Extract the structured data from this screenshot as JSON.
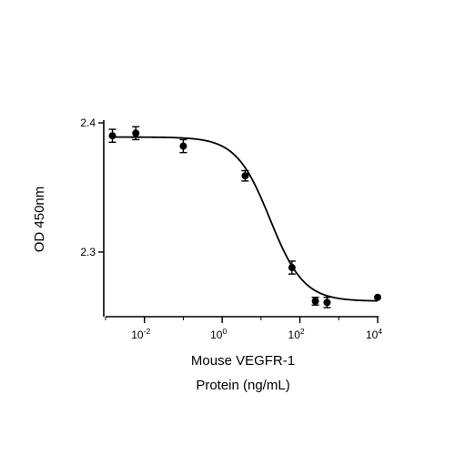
{
  "chart_data": {
    "type": "scatter",
    "xlabel": "Mouse VEGFR-1",
    "xlabel_line2": "Protein (ng/mL)",
    "ylabel": "OD 450nm",
    "xscale": "log",
    "xlim": [
      0.001,
      10000
    ],
    "ylim": [
      2.25,
      2.4
    ],
    "x_ticks": [
      {
        "value": 0.01,
        "base": "10",
        "exp": "-2"
      },
      {
        "value": 1,
        "base": "10",
        "exp": "0"
      },
      {
        "value": 100,
        "base": "10",
        "exp": "2"
      },
      {
        "value": 10000,
        "base": "10",
        "exp": "4"
      }
    ],
    "y_ticks": [
      {
        "value": 2.3,
        "label": "2.3"
      },
      {
        "value": 2.4,
        "label": "2.4"
      }
    ],
    "series": [
      {
        "points": [
          {
            "x": 0.0015,
            "y": 2.39,
            "err": 0.005
          },
          {
            "x": 0.006,
            "y": 2.392,
            "err": 0.005
          },
          {
            "x": 0.1,
            "y": 2.382,
            "err": 0.005
          },
          {
            "x": 3.9,
            "y": 2.359,
            "err": 0.004
          },
          {
            "x": 62.5,
            "y": 2.288,
            "err": 0.005
          },
          {
            "x": 250,
            "y": 2.262,
            "err": 0.003
          },
          {
            "x": 500,
            "y": 2.261,
            "err": 0.004
          },
          {
            "x": 10000,
            "y": 2.265,
            "err": 0
          }
        ],
        "fit": {
          "top": 2.389,
          "bottom": 2.262,
          "ec50": 17,
          "hill": 1.0
        }
      }
    ],
    "grid": false,
    "legend": false
  }
}
